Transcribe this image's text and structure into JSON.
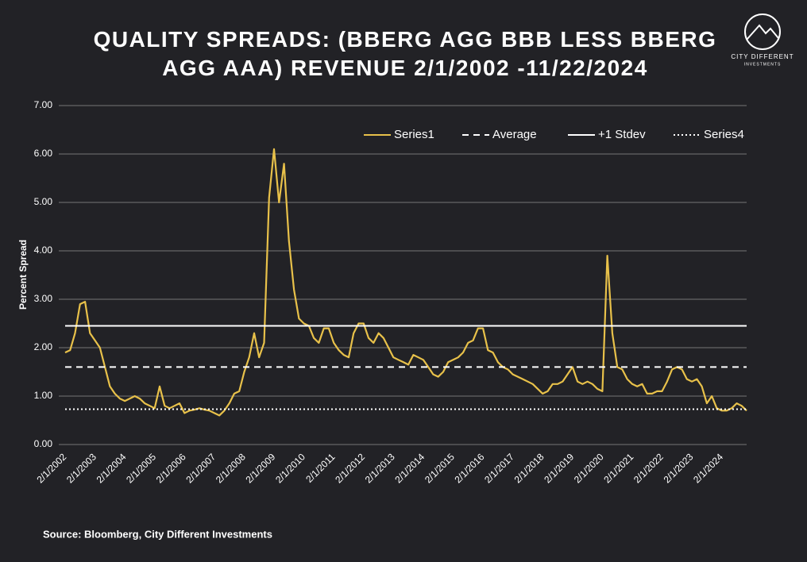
{
  "chart_data": {
    "type": "line",
    "title": "QUALITY SPREADS: (BBERG AGG BBB LESS BBERG AGG AAA) REVENUE 2/1/2002 -11/22/2024",
    "ylabel": "Percent Spread",
    "source": "Source: Bloomberg, City Different Investments",
    "logo": {
      "name": "CITY DIFFERENT",
      "sub": "INVESTMENTS"
    },
    "categories": [
      "2/1/2002",
      null,
      null,
      null,
      null,
      null,
      "2/1/2003",
      null,
      null,
      null,
      null,
      null,
      "2/1/2004",
      null,
      null,
      null,
      null,
      null,
      "2/1/2005",
      null,
      null,
      null,
      null,
      null,
      "2/1/2006",
      null,
      null,
      null,
      null,
      null,
      "2/1/2007",
      null,
      null,
      null,
      null,
      null,
      "2/1/2008",
      null,
      null,
      null,
      null,
      null,
      "2/1/2009",
      null,
      null,
      null,
      null,
      null,
      "2/1/2010",
      null,
      null,
      null,
      null,
      null,
      "2/1/2011",
      null,
      null,
      null,
      null,
      null,
      "2/1/2012",
      null,
      null,
      null,
      null,
      null,
      "2/1/2013",
      null,
      null,
      null,
      null,
      null,
      "2/1/2014",
      null,
      null,
      null,
      null,
      null,
      "2/1/2015",
      null,
      null,
      null,
      null,
      null,
      "2/1/2016",
      null,
      null,
      null,
      null,
      null,
      "2/1/2017",
      null,
      null,
      null,
      null,
      null,
      "2/1/2018",
      null,
      null,
      null,
      null,
      null,
      "2/1/2019",
      null,
      null,
      null,
      null,
      null,
      "2/1/2020",
      null,
      null,
      null,
      null,
      null,
      "2/1/2021",
      null,
      null,
      null,
      null,
      null,
      "2/1/2022",
      null,
      null,
      null,
      null,
      null,
      "2/1/2023",
      null,
      null,
      null,
      null,
      null,
      "2/1/2024",
      null,
      null,
      null,
      null,
      null
    ],
    "series": [
      {
        "name": "Series1",
        "color": "#e8c14a",
        "style": "solid",
        "values": [
          1.9,
          1.95,
          2.3,
          2.9,
          2.95,
          2.3,
          2.15,
          2.0,
          1.6,
          1.2,
          1.05,
          0.95,
          0.9,
          0.95,
          1.0,
          0.95,
          0.85,
          0.8,
          0.75,
          1.2,
          0.8,
          0.75,
          0.8,
          0.85,
          0.65,
          0.7,
          0.72,
          0.75,
          0.72,
          0.7,
          0.65,
          0.6,
          0.7,
          0.85,
          1.05,
          1.1,
          1.5,
          1.8,
          2.3,
          1.8,
          2.1,
          5.1,
          6.1,
          5.0,
          5.8,
          4.2,
          3.2,
          2.6,
          2.5,
          2.45,
          2.2,
          2.1,
          2.4,
          2.4,
          2.1,
          1.95,
          1.85,
          1.8,
          2.3,
          2.5,
          2.5,
          2.2,
          2.1,
          2.3,
          2.2,
          2.0,
          1.8,
          1.75,
          1.7,
          1.65,
          1.85,
          1.8,
          1.75,
          1.6,
          1.45,
          1.4,
          1.5,
          1.7,
          1.75,
          1.8,
          1.9,
          2.1,
          2.15,
          2.4,
          2.4,
          1.95,
          1.9,
          1.7,
          1.6,
          1.55,
          1.45,
          1.4,
          1.35,
          1.3,
          1.25,
          1.15,
          1.05,
          1.1,
          1.25,
          1.25,
          1.3,
          1.45,
          1.6,
          1.3,
          1.25,
          1.3,
          1.25,
          1.15,
          1.1,
          3.9,
          2.3,
          1.6,
          1.55,
          1.35,
          1.25,
          1.2,
          1.25,
          1.05,
          1.05,
          1.1,
          1.1,
          1.3,
          1.55,
          1.6,
          1.55,
          1.35,
          1.3,
          1.35,
          1.2,
          0.85,
          1.0,
          0.75,
          0.7,
          0.7,
          0.75,
          0.85,
          0.8,
          0.7
        ]
      },
      {
        "name": "Average",
        "color": "#ffffff",
        "style": "dashed",
        "value": 1.6
      },
      {
        "name": "+1 Stdev",
        "color": "#ffffff",
        "style": "solid",
        "value": 2.45
      },
      {
        "name": "Series4",
        "color": "#ffffff",
        "style": "dotted",
        "value": 0.73
      }
    ],
    "ylim": [
      0,
      7
    ],
    "yticks": [
      {
        "value": 0,
        "label": "0.00"
      },
      {
        "value": 1,
        "label": "1.00"
      },
      {
        "value": 2,
        "label": "2.00"
      },
      {
        "value": 3,
        "label": "3.00"
      },
      {
        "value": 4,
        "label": "4.00"
      },
      {
        "value": 5,
        "label": "5.00"
      },
      {
        "value": 6,
        "label": "6.00"
      },
      {
        "value": 7,
        "label": "7.00"
      }
    ],
    "grid": true,
    "legend": "top-right"
  }
}
